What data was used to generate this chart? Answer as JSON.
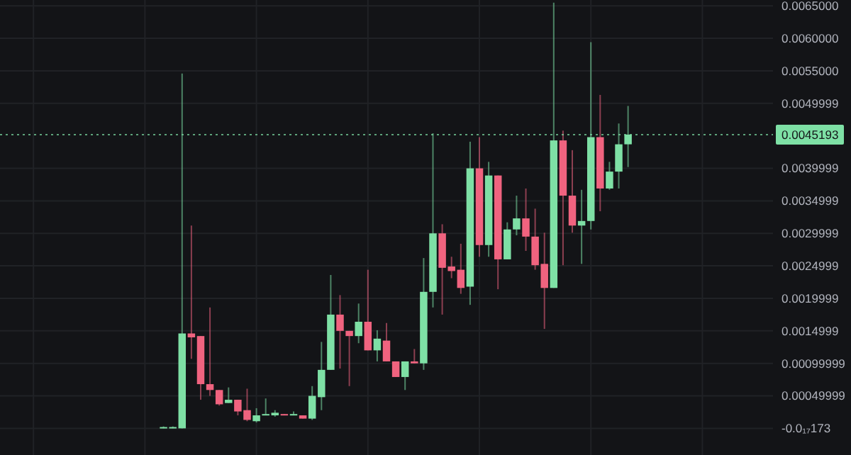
{
  "chart_data": {
    "type": "candlestick",
    "categories": [
      null,
      null,
      null,
      null,
      null,
      null,
      null,
      null,
      null,
      null,
      null,
      null,
      null,
      null,
      null,
      null,
      null,
      null,
      null,
      null,
      null,
      null,
      null,
      null,
      null,
      null,
      null,
      null,
      null,
      null,
      null,
      null,
      null,
      null,
      null,
      null,
      null,
      null,
      null,
      null,
      null,
      null,
      null,
      null,
      null,
      null,
      null,
      null,
      null,
      null,
      null,
      null,
      null,
      null,
      null,
      null,
      null,
      null,
      null,
      null,
      null,
      null,
      null,
      null,
      null,
      null,
      null,
      null,
      null,
      null,
      null,
      null,
      null,
      null,
      null,
      null,
      null,
      null,
      null,
      null,
      null,
      null,
      null
    ],
    "ohlc": [
      null,
      null,
      null,
      null,
      null,
      null,
      null,
      null,
      null,
      null,
      null,
      null,
      null,
      null,
      null,
      null,
      null,
      [
        1e-05,
        3e-05,
        0,
        2e-05
      ],
      [
        2e-05,
        3e-05,
        0,
        2e-05
      ],
      [
        0,
        0.00546,
        0,
        0.00146
      ],
      [
        0.00146,
        0.00312,
        0.00107,
        0.0014
      ],
      [
        0.00142,
        0.00142,
        0.00044,
        0.00068
      ],
      [
        0.00068,
        0.00186,
        0.0005,
        0.00059
      ],
      [
        0.00059,
        0.00059,
        0.00035,
        0.00037
      ],
      [
        0.00039,
        0.00063,
        0.00039,
        0.00044
      ],
      [
        0.00044,
        0.00044,
        0.0002,
        0.00026
      ],
      [
        0.00028,
        0.00061,
        0.00011,
        0.00013
      ],
      [
        0.00011,
        0.00031,
        9e-05,
        0.0002
      ],
      [
        0.0002,
        0.00046,
        0.0002,
        0.00022
      ],
      [
        0.0002,
        0.00028,
        0.00018,
        0.00024
      ],
      [
        0.00022,
        0.00022,
        0.0002,
        0.0002
      ],
      [
        0.0002,
        0.00026,
        0.0002,
        0.00022
      ],
      [
        0.0002,
        0.0002,
        0.00015,
        0.00015
      ],
      [
        0.00015,
        0.00065,
        0.00013,
        0.0005
      ],
      [
        0.00048,
        0.00133,
        0.00028,
        0.0009
      ],
      [
        0.0009,
        0.00236,
        0.0009,
        0.00175
      ],
      [
        0.00175,
        0.00205,
        0.00092,
        0.0015
      ],
      [
        0.0015,
        0.0015,
        0.00065,
        0.00142
      ],
      [
        0.00142,
        0.00192,
        0.00131,
        0.00164
      ],
      [
        0.00164,
        0.00244,
        0.0012,
        0.0012
      ],
      [
        0.0012,
        0.00151,
        0.00103,
        0.00138
      ],
      [
        0.00135,
        0.00162,
        0.00103,
        0.00103
      ],
      [
        0.00103,
        0.00103,
        0.00079,
        0.00079
      ],
      [
        0.00079,
        0.00103,
        0.00059,
        0.00103
      ],
      [
        0.00103,
        0.00122,
        0.001,
        0.001
      ],
      [
        0.001,
        0.00262,
        0.0009,
        0.0021
      ],
      [
        0.0021,
        0.00454,
        0.00186,
        0.003
      ],
      [
        0.003,
        0.00314,
        0.00175,
        0.00247
      ],
      [
        0.00249,
        0.00264,
        0.00231,
        0.00242
      ],
      [
        0.00244,
        0.00284,
        0.00207,
        0.00216
      ],
      [
        0.00218,
        0.00441,
        0.0019,
        0.004
      ],
      [
        0.004,
        0.00448,
        0.00264,
        0.00282
      ],
      [
        0.00282,
        0.0041,
        0.00264,
        0.00389
      ],
      [
        0.00389,
        0.00389,
        0.00214,
        0.0026
      ],
      [
        0.0026,
        0.00317,
        0.0026,
        0.00306
      ],
      [
        0.00306,
        0.00358,
        0.00297,
        0.00323
      ],
      [
        0.00323,
        0.00369,
        0.00273,
        0.00295
      ],
      [
        0.00295,
        0.00338,
        0.00244,
        0.00251
      ],
      [
        0.00253,
        0.00301,
        0.00153,
        0.00216
      ],
      [
        0.00216,
        0.00655,
        0.00216,
        0.00443
      ],
      [
        0.00443,
        0.00458,
        0.00251,
        0.00358
      ],
      [
        0.00358,
        0.00428,
        0.00301,
        0.00312
      ],
      [
        0.00312,
        0.00367,
        0.00253,
        0.00319
      ],
      [
        0.00319,
        0.00594,
        0.00306,
        0.00448
      ],
      [
        0.00448,
        0.00513,
        0.00334,
        0.00369
      ],
      [
        0.00369,
        0.0041,
        0.00367,
        0.00395
      ],
      [
        0.00395,
        0.00469,
        0.00369,
        0.00437
      ],
      [
        0.00437,
        0.00496,
        0.00402,
        0.0045193
      ],
      null,
      null,
      null,
      null,
      null,
      null,
      null,
      null,
      null,
      null,
      null,
      null,
      null,
      null,
      null
    ],
    "colors": [
      null,
      null,
      null,
      null,
      null,
      null,
      null,
      null,
      null,
      null,
      null,
      null,
      null,
      null,
      null,
      null,
      null,
      "#7ee0a5",
      "#7ee0a5",
      "#7ee0a5",
      "#f0637f",
      "#f0637f",
      "#f0637f",
      "#f0637f",
      "#7ee0a5",
      "#f0637f",
      "#f0637f",
      "#7ee0a5",
      "#7ee0a5",
      "#7ee0a5",
      "#f0637f",
      "#7ee0a5",
      "#f0637f",
      "#7ee0a5",
      "#7ee0a5",
      "#7ee0a5",
      "#f0637f",
      "#f0637f",
      "#7ee0a5",
      "#f0637f",
      "#7ee0a5",
      "#f0637f",
      "#f0637f",
      "#7ee0a5",
      "#f0637f",
      "#7ee0a5",
      "#7ee0a5",
      "#f0637f",
      "#f0637f",
      "#f0637f",
      "#7ee0a5",
      "#f0637f",
      "#7ee0a5",
      "#f0637f",
      "#7ee0a5",
      "#7ee0a5",
      "#f0637f",
      "#f0637f",
      "#f0637f",
      "#7ee0a5",
      "#f0637f",
      "#f0637f",
      "#7ee0a5",
      "#7ee0a5",
      "#f0637f",
      "#7ee0a5",
      "#7ee0a5",
      "#7ee0a5",
      null,
      null,
      null,
      null,
      null,
      null,
      null,
      null,
      null,
      null,
      null,
      null,
      null,
      null,
      null
    ],
    "ylim": [
      -0.00041,
      0.00659
    ],
    "yticks": [
      {
        "value": -1.73e-19,
        "label": "-0.0₁₇173"
      },
      0.00049999,
      0.00099999,
      0.0014999,
      0.0019999,
      0.0024999,
      0.0029999,
      0.0034999,
      0.0039999,
      0.0049999,
      {
        "value": 0.0055,
        "label": "0.0055000"
      },
      {
        "value": 0.006,
        "label": "0.0060000"
      },
      {
        "value": 0.0065,
        "label": "0.0065000"
      }
    ],
    "grid": true,
    "tick_labels": "y",
    "ref_lines": [
      {
        "axis": "y",
        "value": 0.0045193,
        "label": "0.0045193",
        "color": "#7ee0a5",
        "line_style": "dotted"
      }
    ]
  }
}
